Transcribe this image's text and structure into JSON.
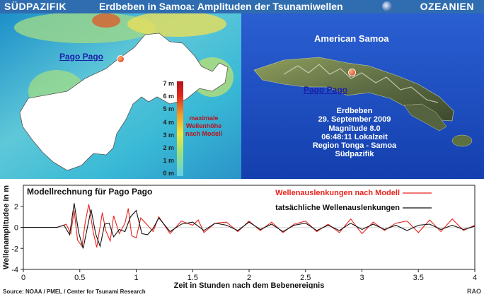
{
  "header": {
    "left": "SÜDPAZIFIK",
    "title": "Erdbeben in Samoa: Amplituden der Tsunamiwellen",
    "right": "OZEANIEN"
  },
  "left_map": {
    "place_label": "Pago Pago",
    "scale_ticks": [
      "7 m",
      "6 m",
      "5 m",
      "4 m",
      "3 m",
      "2 m",
      "1 m",
      "0 m"
    ],
    "legend_lines": [
      "maximale",
      "Wellenhöhe",
      "nach Modell"
    ]
  },
  "right_map": {
    "title": "American Samoa",
    "place_label": "Pago Pago",
    "info_lines": [
      "Erdbeben",
      "29. September 2009",
      "Magnitude 8.0",
      "06:48:11 Lokalzeit",
      "Region Tonga - Samoa",
      "Südpazifik"
    ]
  },
  "chart_data": {
    "type": "line",
    "title": "Modellrechnung für Pago Pago",
    "xlabel": "Zeit in Stunden nach dem Bebenereignis",
    "ylabel": "Wellenamplitudee in m",
    "xlim": [
      0,
      4
    ],
    "ylim": [
      -4,
      4
    ],
    "xticks": [
      0,
      0.5,
      1,
      1.5,
      2,
      2.5,
      3,
      3.5,
      4
    ],
    "xtick_labels": [
      "0",
      "0.5",
      "1",
      "1.5",
      "2",
      "2.5",
      "3",
      "3.5",
      "4"
    ],
    "yticks": [
      2,
      0,
      -2,
      -4
    ],
    "ytick_labels": [
      "2",
      "0",
      "-2",
      "-4"
    ],
    "legend_position": "top-right",
    "series": [
      {
        "name": "Wellenauslenkungen nach Modell",
        "color": "#e8231d",
        "x": [
          0,
          0.3,
          0.38,
          0.42,
          0.45,
          0.48,
          0.52,
          0.55,
          0.58,
          0.62,
          0.65,
          0.7,
          0.73,
          0.77,
          0.8,
          0.85,
          0.9,
          0.93,
          0.96,
          1.0,
          1.04,
          1.1,
          1.15,
          1.2,
          1.3,
          1.4,
          1.5,
          1.55,
          1.6,
          1.7,
          1.8,
          1.9,
          2.0,
          2.1,
          2.2,
          2.3,
          2.4,
          2.5,
          2.6,
          2.7,
          2.8,
          2.9,
          3.0,
          3.1,
          3.2,
          3.3,
          3.4,
          3.5,
          3.6,
          3.7,
          3.8,
          3.9,
          4.0
        ],
        "y": [
          0,
          0,
          0.3,
          -0.6,
          1.6,
          -1.2,
          -1.8,
          0.6,
          2.2,
          -0.5,
          -1.9,
          1.4,
          -0.3,
          -1.3,
          1.1,
          -0.6,
          0.4,
          1.8,
          -0.8,
          -1.0,
          0.9,
          0.2,
          -0.4,
          1.0,
          -0.6,
          0.6,
          0.2,
          0.7,
          -0.5,
          0.4,
          0.5,
          -0.4,
          0.6,
          -0.3,
          0.5,
          -0.5,
          0.3,
          0.6,
          -0.4,
          0.3,
          -0.5,
          0.8,
          -0.6,
          0.5,
          -0.3,
          0.4,
          0.6,
          -0.5,
          0.7,
          -0.4,
          0.8,
          -0.3,
          0.2
        ]
      },
      {
        "name": "tatsächliche  Wellenauslenkungen",
        "color": "#111111",
        "x": [
          0,
          0.3,
          0.36,
          0.41,
          0.45,
          0.49,
          0.53,
          0.56,
          0.6,
          0.64,
          0.68,
          0.72,
          0.76,
          0.8,
          0.85,
          0.9,
          0.95,
          1.0,
          1.05,
          1.1,
          1.15,
          1.2,
          1.3,
          1.4,
          1.5,
          1.6,
          1.7,
          1.8,
          1.9,
          2.0,
          2.1,
          2.2,
          2.3,
          2.4,
          2.5,
          2.6,
          2.7,
          2.8,
          2.9,
          3.0,
          3.1,
          3.2,
          3.3,
          3.4,
          3.5,
          3.6,
          3.7,
          3.8,
          3.9,
          4.0
        ],
        "y": [
          0,
          0,
          0.2,
          -0.7,
          2.3,
          -0.5,
          -2.0,
          -0.4,
          1.7,
          -0.6,
          -1.8,
          0.3,
          0.4,
          -0.9,
          -0.2,
          -0.4,
          1.0,
          1.6,
          -0.6,
          -0.7,
          -0.1,
          0.9,
          -0.4,
          0.3,
          0.5,
          -0.3,
          0.4,
          0.2,
          -0.3,
          0.5,
          -0.2,
          0.3,
          -0.4,
          0.2,
          0.4,
          -0.3,
          0.2,
          -0.3,
          0.4,
          -0.2,
          0.3,
          -0.2,
          0.2,
          -0.3,
          0.2,
          0.3,
          -0.2,
          0.2,
          -0.2,
          0.1
        ]
      }
    ]
  },
  "footer": {
    "source": "Source: NOAA / PMEL / Center for Tsunami Research",
    "badge": "RAO"
  }
}
